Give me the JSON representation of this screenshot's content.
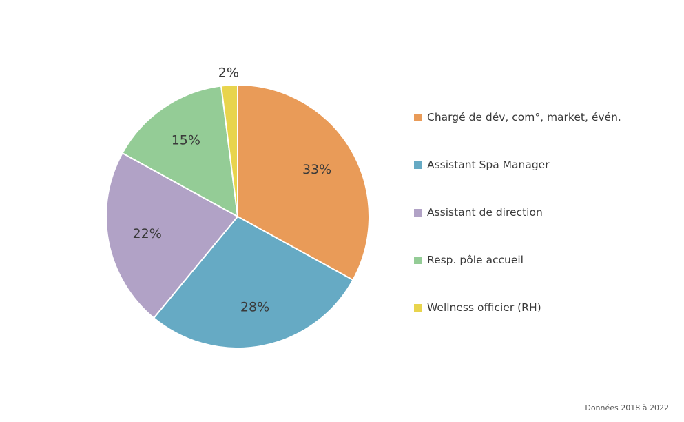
{
  "chart_data": {
    "type": "pie",
    "categories": [
      "Chargé de dév, com°, market, évén.",
      "Assistant Spa Manager",
      "Assistant de direction",
      "Resp. pôle accueil",
      "Wellness officier (RH)"
    ],
    "values": [
      33,
      28,
      22,
      15,
      2
    ],
    "data_labels": [
      "33%",
      "28%",
      "22%",
      "15%",
      "2%"
    ],
    "colors": [
      "#E99B58",
      "#66AAC4",
      "#B1A2C6",
      "#94CC96",
      "#E8D44D"
    ],
    "legend_position": "right",
    "start_angle": "top",
    "direction": "clockwise"
  },
  "footnote": "Données 2018 à 2022"
}
